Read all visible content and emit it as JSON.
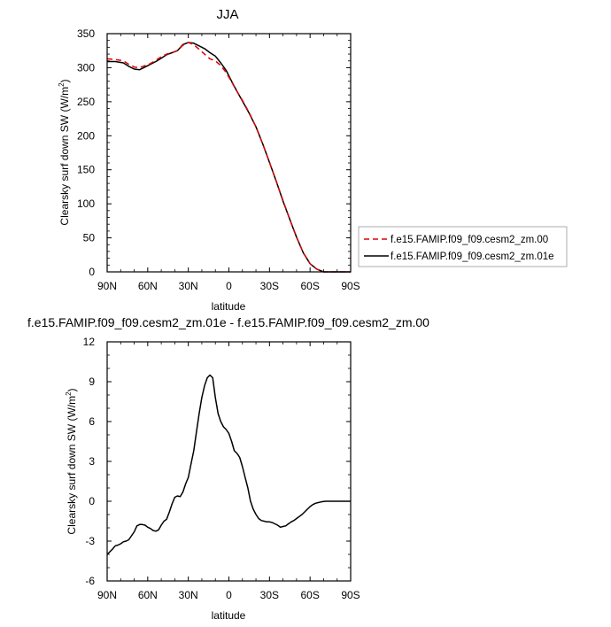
{
  "colors": {
    "series_control": "#e00000",
    "series_test": "#000000",
    "diff_line": "#000000"
  },
  "chart_data": [
    {
      "type": "line",
      "title": "JJA",
      "xlabel": "latitude",
      "ylabel_main": "Clearsky surf down SW (W/m",
      "ylabel_sup": "2",
      "ylabel_close": ")",
      "xlim": [
        90,
        -90
      ],
      "ylim": [
        0,
        350
      ],
      "xticks": [
        90,
        60,
        30,
        0,
        -30,
        -60,
        -90
      ],
      "xticklabels": [
        "90N",
        "60N",
        "30N",
        "0",
        "30S",
        "60S",
        "90S"
      ],
      "yticks": [
        0,
        50,
        100,
        150,
        200,
        250,
        300,
        350
      ],
      "yticklabels": [
        "0",
        "50",
        "100",
        "150",
        "200",
        "250",
        "300",
        "350"
      ],
      "legend_position": "right",
      "series": [
        {
          "name": "f.e15.FAMIP.f09_f09.cesm2_zm.00",
          "style": "dashed",
          "color": "#e00000",
          "x": [
            90,
            84,
            78,
            74,
            70,
            66,
            62,
            58,
            54,
            50,
            46,
            42,
            38,
            34,
            30,
            26,
            22,
            18,
            14,
            10,
            6,
            2,
            -2,
            -6,
            -10,
            -15,
            -20,
            -25,
            -30,
            -35,
            -40,
            -45,
            -50,
            -55,
            -60,
            -65,
            -70,
            -75,
            -80,
            -85,
            -90
          ],
          "y": [
            313,
            312,
            310,
            305,
            301,
            300,
            303,
            306,
            311,
            316,
            320,
            322,
            325,
            333,
            337,
            334,
            327,
            320,
            313,
            310,
            303,
            293,
            279,
            265,
            252,
            234,
            213,
            188,
            161,
            133,
            105,
            77,
            51,
            28,
            12,
            4,
            0,
            0,
            0,
            0,
            0
          ]
        },
        {
          "name": "f.e15.FAMIP.f09_f09.cesm2_zm.01e",
          "style": "solid",
          "color": "#000000",
          "x": [
            90,
            84,
            78,
            74,
            70,
            66,
            62,
            58,
            54,
            50,
            46,
            42,
            38,
            34,
            30,
            26,
            22,
            18,
            14,
            10,
            6,
            2,
            -2,
            -6,
            -10,
            -15,
            -20,
            -25,
            -30,
            -35,
            -40,
            -45,
            -50,
            -55,
            -60,
            -65,
            -70,
            -75,
            -80,
            -85,
            -90
          ],
          "y": [
            309,
            309,
            307,
            302,
            298,
            297,
            301,
            305,
            309,
            314,
            319,
            322,
            325,
            334,
            337,
            336,
            332,
            328,
            322,
            317,
            307,
            296,
            280,
            265,
            251,
            233,
            213,
            188,
            161,
            133,
            104,
            77,
            51,
            28,
            12,
            4,
            0,
            0,
            0,
            0,
            0
          ]
        }
      ]
    },
    {
      "type": "line",
      "title": "f.e15.FAMIP.f09_f09.cesm2_zm.01e - f.e15.FAMIP.f09_f09.cesm2_zm.00",
      "xlabel": "latitude",
      "ylabel_main": "Clearsky surf down SW (W/m",
      "ylabel_sup": "2",
      "ylabel_close": ")",
      "xlim": [
        90,
        -90
      ],
      "ylim": [
        -6,
        12
      ],
      "xticks": [
        90,
        60,
        30,
        0,
        -30,
        -60,
        -90
      ],
      "xticklabels": [
        "90N",
        "60N",
        "30N",
        "0",
        "30S",
        "60S",
        "90S"
      ],
      "yticks": [
        -6,
        -3,
        0,
        3,
        6,
        9,
        12
      ],
      "yticklabels": [
        "-6",
        "-3",
        "0",
        "3",
        "6",
        "9",
        "12"
      ],
      "series": [
        {
          "name": "",
          "style": "solid",
          "color": "#000000",
          "x": [
            90,
            88,
            86,
            84,
            82,
            80,
            78,
            76,
            74,
            72,
            70,
            68,
            66,
            64,
            62,
            60,
            58,
            56,
            54,
            52,
            50,
            48,
            46,
            44,
            42,
            40,
            38,
            36,
            34,
            32,
            30,
            28,
            26,
            24,
            22,
            20,
            18,
            16,
            14,
            12,
            10,
            8,
            6,
            4,
            2,
            0,
            -2,
            -4,
            -6,
            -8,
            -10,
            -12,
            -14,
            -16,
            -18,
            -20,
            -22,
            -24,
            -26,
            -28,
            -30,
            -32,
            -34,
            -36,
            -38,
            -40,
            -42,
            -44,
            -46,
            -48,
            -50,
            -52,
            -54,
            -56,
            -58,
            -60,
            -62,
            -64,
            -66,
            -68,
            -70,
            -72,
            -74,
            -76,
            -78,
            -80,
            -82,
            -84,
            -86,
            -88,
            -90
          ],
          "y": [
            -4.0,
            -3.8,
            -3.6,
            -3.35,
            -3.3,
            -3.2,
            -3.05,
            -3.0,
            -2.9,
            -2.6,
            -2.3,
            -1.85,
            -1.75,
            -1.75,
            -1.8,
            -1.95,
            -2.05,
            -2.2,
            -2.25,
            -2.15,
            -1.8,
            -1.5,
            -1.35,
            -0.8,
            -0.2,
            0.3,
            0.4,
            0.35,
            0.7,
            1.3,
            1.8,
            2.8,
            3.8,
            5.2,
            6.6,
            7.8,
            8.7,
            9.3,
            9.5,
            9.3,
            7.8,
            6.6,
            6.0,
            5.6,
            5.4,
            5.1,
            4.5,
            3.8,
            3.6,
            3.3,
            2.6,
            1.8,
            1.0,
            0.0,
            -0.6,
            -1.0,
            -1.3,
            -1.45,
            -1.5,
            -1.55,
            -1.55,
            -1.6,
            -1.7,
            -1.8,
            -1.95,
            -1.9,
            -1.85,
            -1.7,
            -1.55,
            -1.45,
            -1.3,
            -1.15,
            -1.0,
            -0.8,
            -0.6,
            -0.4,
            -0.25,
            -0.15,
            -0.1,
            -0.05,
            -0.02,
            0.0,
            0.0,
            0.0,
            0.0,
            0.0,
            0.0,
            0.0,
            0.0,
            0.0,
            0.0
          ]
        }
      ]
    }
  ]
}
